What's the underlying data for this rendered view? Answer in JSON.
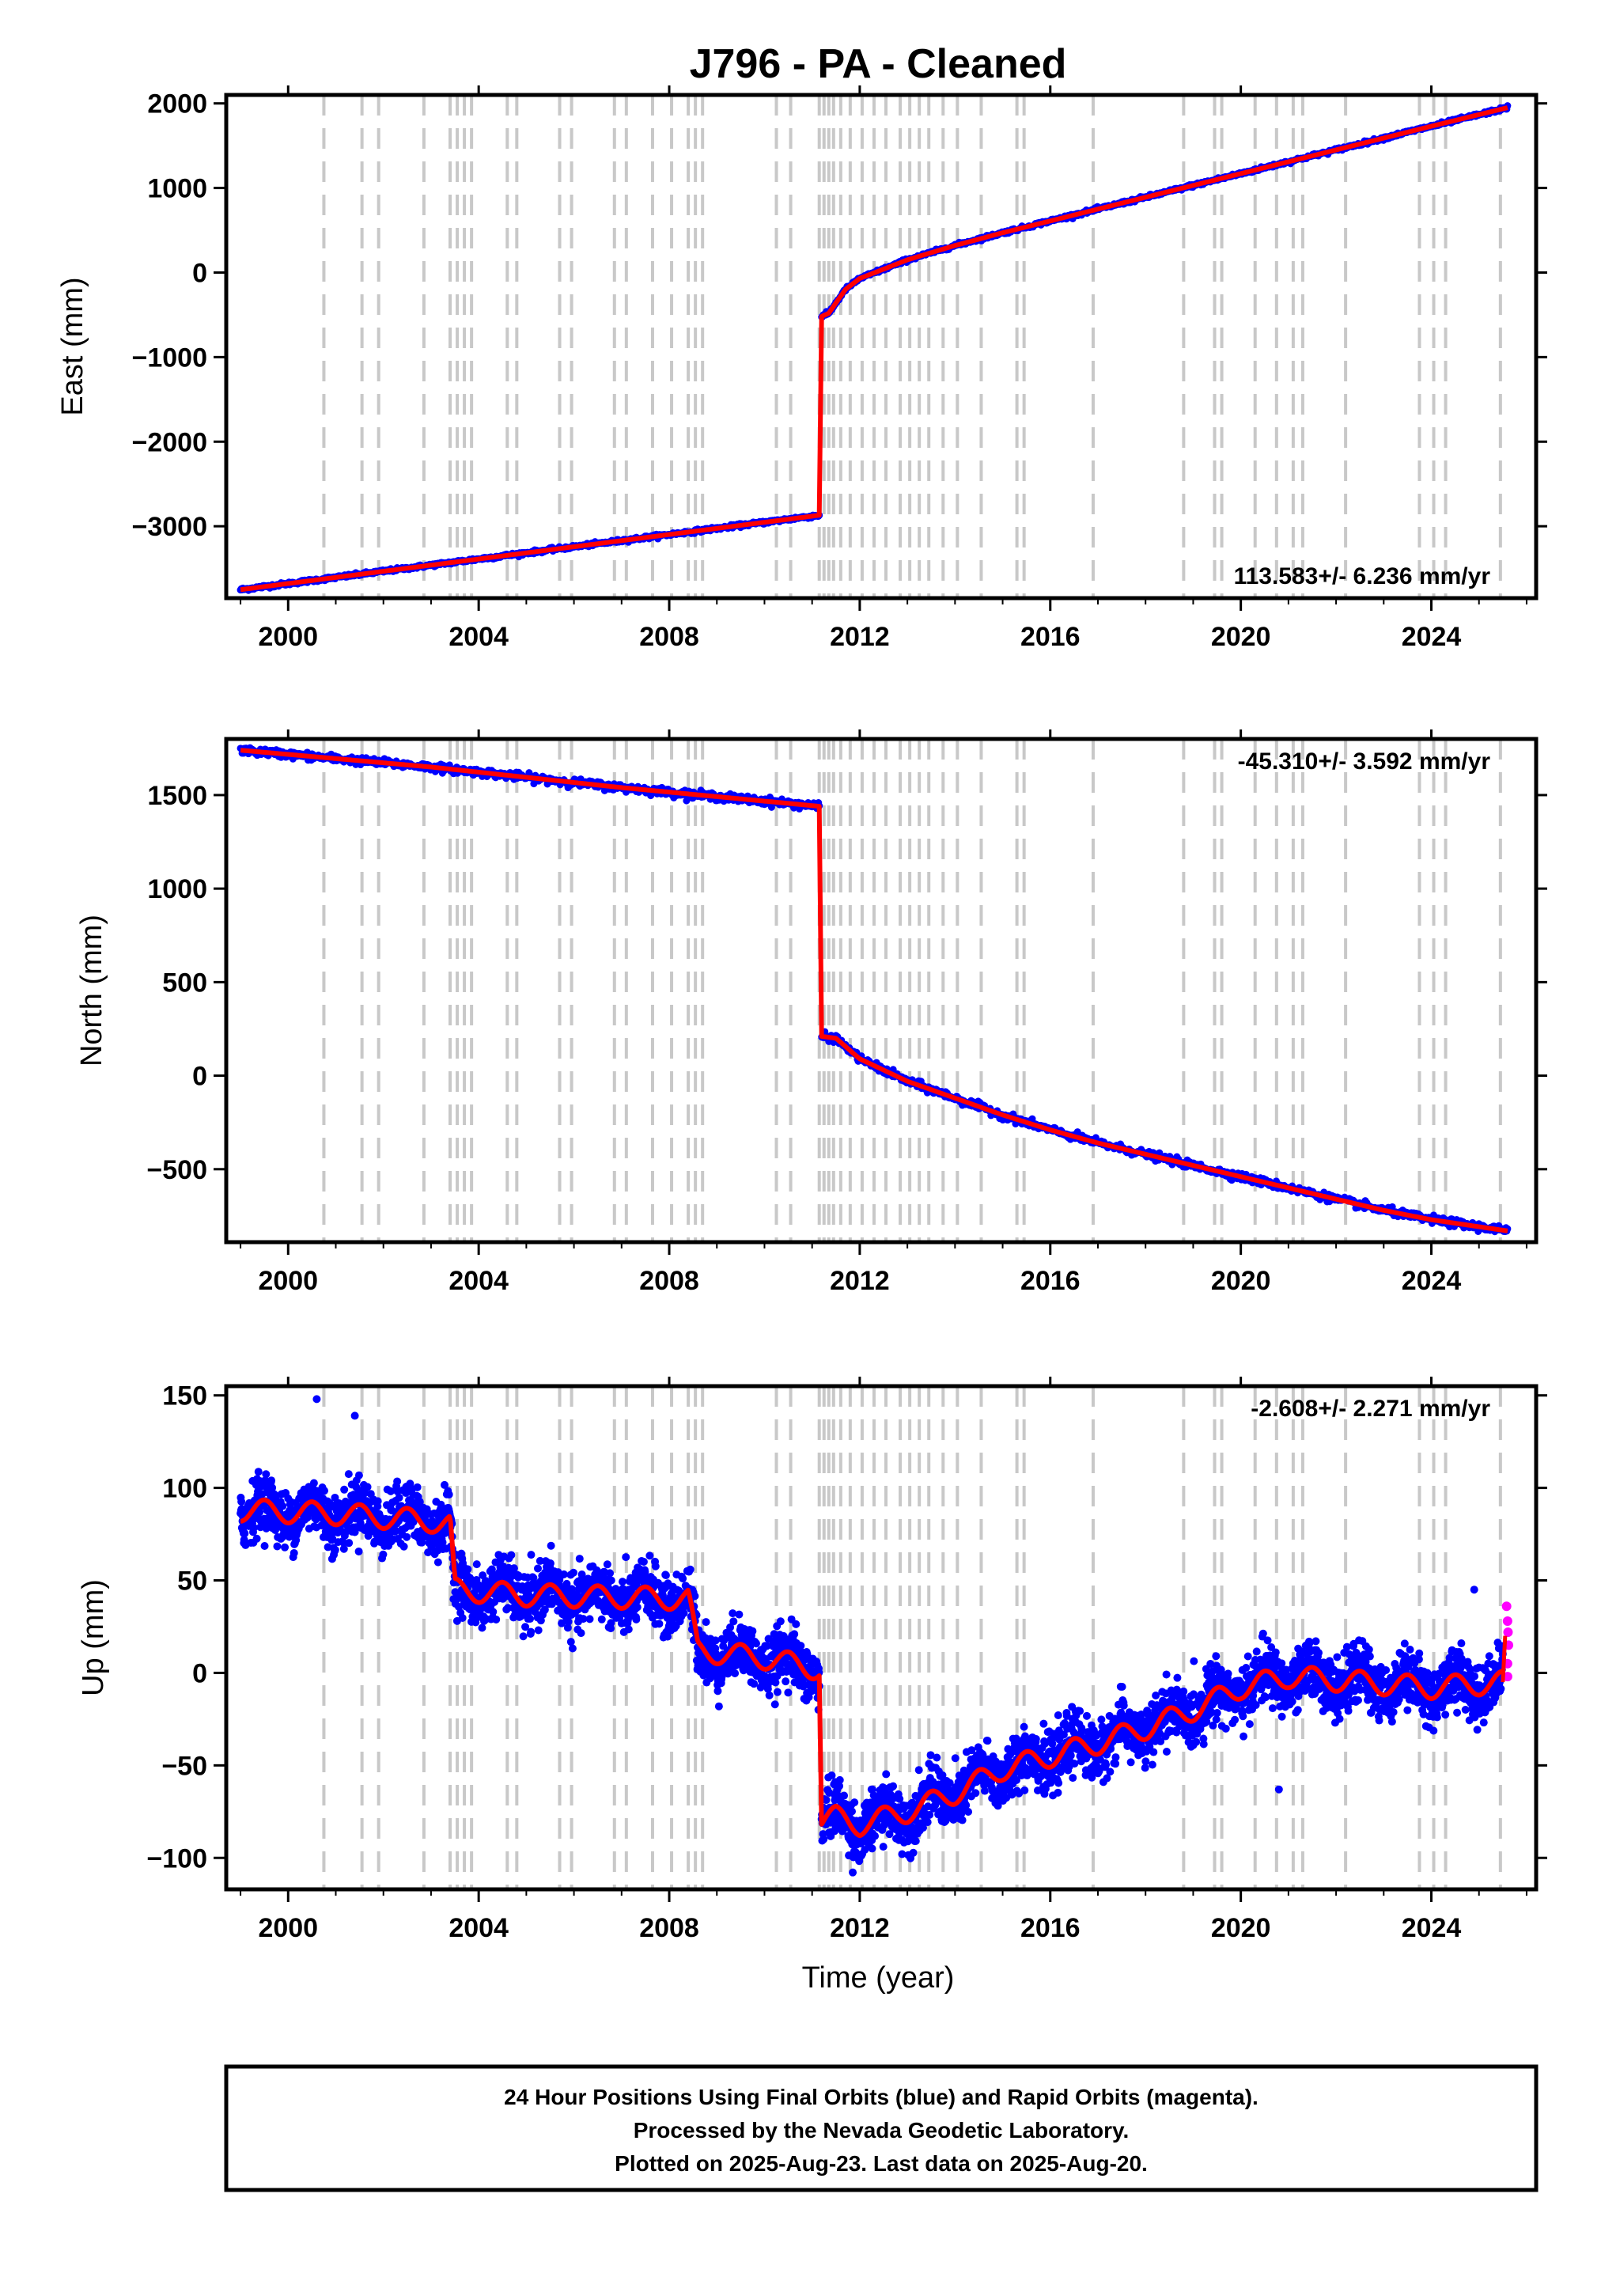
{
  "title": "J796  - PA - Cleaned",
  "x_axis_label": "Time (year)",
  "footer": {
    "line1": "24 Hour Positions Using Final Orbits (blue) and Rapid Orbits (magenta).",
    "line2": "Processed by the Nevada Geodetic Laboratory.",
    "line3": "Plotted on 2025-Aug-23. Last data on 2025-Aug-20."
  },
  "colors": {
    "final_orbits": "#0000ff",
    "rapid_orbits": "#ff00ff",
    "model_fit": "#ff0000",
    "event_lines": "#c8c8c8"
  },
  "event_lines_years": [
    2000.75,
    2001.55,
    2001.9,
    2002.85,
    2003.4,
    2003.55,
    2003.7,
    2003.85,
    2004.6,
    2004.8,
    2005.7,
    2005.95,
    2006.85,
    2007.1,
    2007.65,
    2008.05,
    2008.4,
    2008.55,
    2008.7,
    2010.25,
    2010.55,
    2011.15,
    2011.25,
    2011.35,
    2011.45,
    2011.6,
    2011.8,
    2012.05,
    2012.3,
    2012.55,
    2012.85,
    2013.05,
    2013.25,
    2013.45,
    2013.75,
    2014.05,
    2014.55,
    2015.3,
    2015.45,
    2016.9,
    2018.8,
    2019.45,
    2019.6,
    2020.3,
    2020.75,
    2021.1,
    2021.3,
    2022.2,
    2023.75,
    2024.05,
    2024.3,
    2025.45
  ],
  "chart_data": [
    {
      "type": "scatter",
      "panel": "east",
      "ylabel": "East (mm)",
      "rate_text": "113.583+/- 6.236 mm/yr",
      "xlim": [
        1998.7,
        2026.2
      ],
      "ylim": [
        -3850,
        2100
      ],
      "xticks": [
        2000,
        2004,
        2008,
        2012,
        2016,
        2020,
        2024
      ],
      "xtick_labels": [
        "2000",
        "2004",
        "2008",
        "2012",
        "2016",
        "2020",
        "2024"
      ],
      "yticks": [
        2000,
        1000,
        0,
        -1000,
        -2000,
        -3000
      ],
      "ytick_labels": [
        "2000",
        "1000",
        "0",
        "−1000",
        "−2000",
        "−3000"
      ],
      "series": [
        {
          "x": [
            1999.0,
            2003.0,
            2007.0,
            2011.15
          ],
          "y": [
            -3750,
            -3460,
            -3170,
            -2870
          ]
        },
        {
          "x": [
            2011.2,
            2011.35,
            2011.7,
            2012.0,
            2013.0,
            2014.0,
            2015.0,
            2016.0,
            2017.0,
            2018.0,
            2019.0,
            2020.0,
            2021.0,
            2022.0,
            2023.0,
            2024.0,
            2025.6
          ],
          "y": [
            -520,
            -480,
            -200,
            -70,
            150,
            320,
            470,
            610,
            750,
            890,
            1030,
            1170,
            1310,
            1450,
            1590,
            1730,
            1950
          ]
        }
      ]
    },
    {
      "type": "scatter",
      "panel": "north",
      "ylabel": "North (mm)",
      "rate_text": "-45.310+/- 3.592 mm/yr",
      "xlim": [
        1998.7,
        2026.2
      ],
      "ylim": [
        -890,
        1800
      ],
      "xticks": [
        2000,
        2004,
        2008,
        2012,
        2016,
        2020,
        2024
      ],
      "xtick_labels": [
        "2000",
        "2004",
        "2008",
        "2012",
        "2016",
        "2020",
        "2024"
      ],
      "yticks": [
        1500,
        1000,
        500,
        0,
        -500
      ],
      "ytick_labels": [
        "1500",
        "1000",
        "500",
        "0",
        "−500"
      ],
      "series": [
        {
          "x": [
            1999.0,
            2003.0,
            2007.0,
            2011.15
          ],
          "y": [
            1740,
            1650,
            1540,
            1440
          ]
        },
        {
          "x": [
            2011.2,
            2011.5,
            2012.0,
            2013.0,
            2014.0,
            2015.0,
            2016.0,
            2017.0,
            2018.0,
            2019.0,
            2020.0,
            2021.0,
            2022.0,
            2023.0,
            2024.0,
            2025.6
          ],
          "y": [
            210,
            200,
            90,
            -30,
            -120,
            -210,
            -290,
            -360,
            -420,
            -480,
            -540,
            -600,
            -660,
            -720,
            -770,
            -830
          ]
        }
      ]
    },
    {
      "type": "scatter",
      "panel": "up",
      "ylabel": "Up (mm)",
      "rate_text": "-2.608+/- 2.271 mm/yr",
      "xlim": [
        1998.7,
        2026.2
      ],
      "ylim": [
        -117,
        155
      ],
      "xticks": [
        2000,
        2004,
        2008,
        2012,
        2016,
        2020,
        2024
      ],
      "xtick_labels": [
        "2000",
        "2004",
        "2008",
        "2012",
        "2016",
        "2020",
        "2024"
      ],
      "yticks": [
        150,
        100,
        50,
        0,
        -50,
        -100
      ],
      "ytick_labels": [
        "150",
        "100",
        "50",
        "0",
        "−50",
        "−100"
      ],
      "series": [
        {
          "x": [
            1999.0,
            2001.0,
            2003.0,
            2003.4,
            2003.5,
            2005.0,
            2008.4,
            2008.6,
            2010.0,
            2011.15
          ],
          "y": [
            88,
            86,
            82,
            80,
            45,
            42,
            40,
            12,
            8,
            2
          ]
        },
        {
          "x": [
            2011.2,
            2011.5,
            2012.0,
            2013.0,
            2014.0,
            2015.0,
            2016.0,
            2017.0,
            2018.0,
            2019.0,
            2020.0,
            2021.0,
            2022.0,
            2023.0,
            2024.0,
            2025.5
          ],
          "y": [
            -80,
            -78,
            -82,
            -75,
            -65,
            -52,
            -45,
            -38,
            -30,
            -20,
            -8,
            -2,
            -4,
            -6,
            -8,
            -5
          ]
        }
      ],
      "outliers": [
        {
          "x": 2000.6,
          "y": 148
        },
        {
          "x": 2001.4,
          "y": 139
        },
        {
          "x": 2020.8,
          "y": -63
        },
        {
          "x": 2024.9,
          "y": 45
        }
      ],
      "rapid_points": [
        {
          "x": 2025.58,
          "y": 36
        },
        {
          "x": 2025.6,
          "y": 28
        },
        {
          "x": 2025.61,
          "y": 22
        },
        {
          "x": 2025.62,
          "y": 15
        },
        {
          "x": 2025.6,
          "y": 5
        },
        {
          "x": 2025.6,
          "y": -2
        }
      ]
    }
  ]
}
